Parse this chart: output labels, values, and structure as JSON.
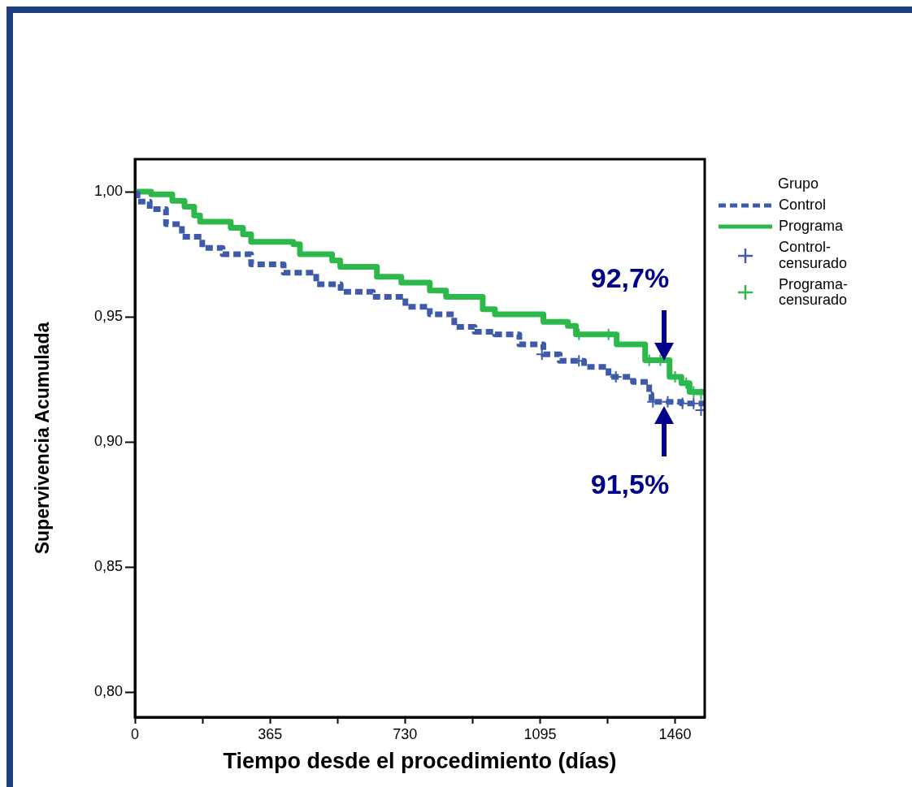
{
  "chart_data": {
    "type": "step",
    "xlabel": "Tiempo desde el procedimiento (días)",
    "ylabel": "Supervivencia Acumulada",
    "legend_title": "Grupo",
    "legend": "right",
    "grid": false,
    "xlim": [
      0,
      1540
    ],
    "xticks": [
      0,
      {
        "value": 182.5,
        "label": null
      },
      365,
      {
        "value": 547.5,
        "label": null
      },
      730,
      {
        "value": 912.5,
        "label": null
      },
      1095,
      {
        "value": 1277.5,
        "label": null
      },
      1460
    ],
    "ylim": [
      0.79,
      1.013
    ],
    "yticks": [
      {
        "value": 0.8,
        "label": "0,80"
      },
      {
        "value": 0.85,
        "label": "0,85"
      },
      {
        "value": 0.9,
        "label": "0,90"
      },
      {
        "value": 0.95,
        "label": "0,95"
      },
      {
        "value": 1.0,
        "label": "1,00"
      }
    ],
    "series": [
      {
        "name": "Control",
        "color": "#3f5aaa",
        "line_style": "dashed",
        "marker": "none",
        "x": [
          0,
          7,
          40,
          84,
          127,
          182,
          237,
          314,
          402,
          490,
          556,
          643,
          731,
          797,
          863,
          918,
          973,
          1039,
          1104,
          1148,
          1214,
          1280,
          1346,
          1390,
          1396,
          1477,
          1539
        ],
        "values": [
          0.9993,
          0.996,
          0.993,
          0.987,
          0.982,
          0.9775,
          0.975,
          0.971,
          0.9676,
          0.963,
          0.96,
          0.958,
          0.954,
          0.951,
          0.946,
          0.944,
          0.943,
          0.939,
          0.935,
          0.9324,
          0.93,
          0.926,
          0.924,
          0.919,
          0.916,
          0.9154,
          0.9127
        ]
      },
      {
        "name": "Programa",
        "color": "#2db84b",
        "line_style": "solid",
        "marker": "none",
        "x": [
          0,
          44,
          101,
          134,
          160,
          176,
          259,
          292,
          314,
          428,
          446,
          533,
          555,
          654,
          720,
          797,
          841,
          940,
          973,
          1104,
          1170,
          1192,
          1302,
          1379,
          1445,
          1477,
          1499,
          1539
        ],
        "values": [
          1.0,
          0.999,
          0.9964,
          0.994,
          0.9905,
          0.988,
          0.9856,
          0.983,
          0.98,
          0.979,
          0.975,
          0.9725,
          0.97,
          0.966,
          0.9637,
          0.9605,
          0.958,
          0.953,
          0.951,
          0.948,
          0.9464,
          0.943,
          0.939,
          0.9327,
          0.926,
          0.9235,
          0.92,
          0.919
        ]
      },
      {
        "name": "Control-censurado",
        "type": "scatter",
        "color": "#3f5aaa",
        "marker": "cross",
        "x": [
          1100,
          1200,
          1300,
          1400,
          1440,
          1480,
          1510,
          1530
        ],
        "values": [
          0.935,
          0.9324,
          0.926,
          0.916,
          0.916,
          0.9154,
          0.9154,
          0.9127
        ]
      },
      {
        "name": "Programa-censurado",
        "type": "scatter",
        "color": "#2db84b",
        "marker": "cross",
        "x": [
          1200,
          1280,
          1390,
          1420,
          1460,
          1490,
          1510,
          1530
        ],
        "values": [
          0.943,
          0.943,
          0.9327,
          0.9327,
          0.926,
          0.9235,
          0.92,
          0.919
        ]
      }
    ],
    "annotations": [
      {
        "text": "92,7%",
        "x": 1430,
        "y": 0.932
      },
      {
        "text": "91,5%",
        "x": 1430,
        "y": 0.915
      }
    ]
  }
}
